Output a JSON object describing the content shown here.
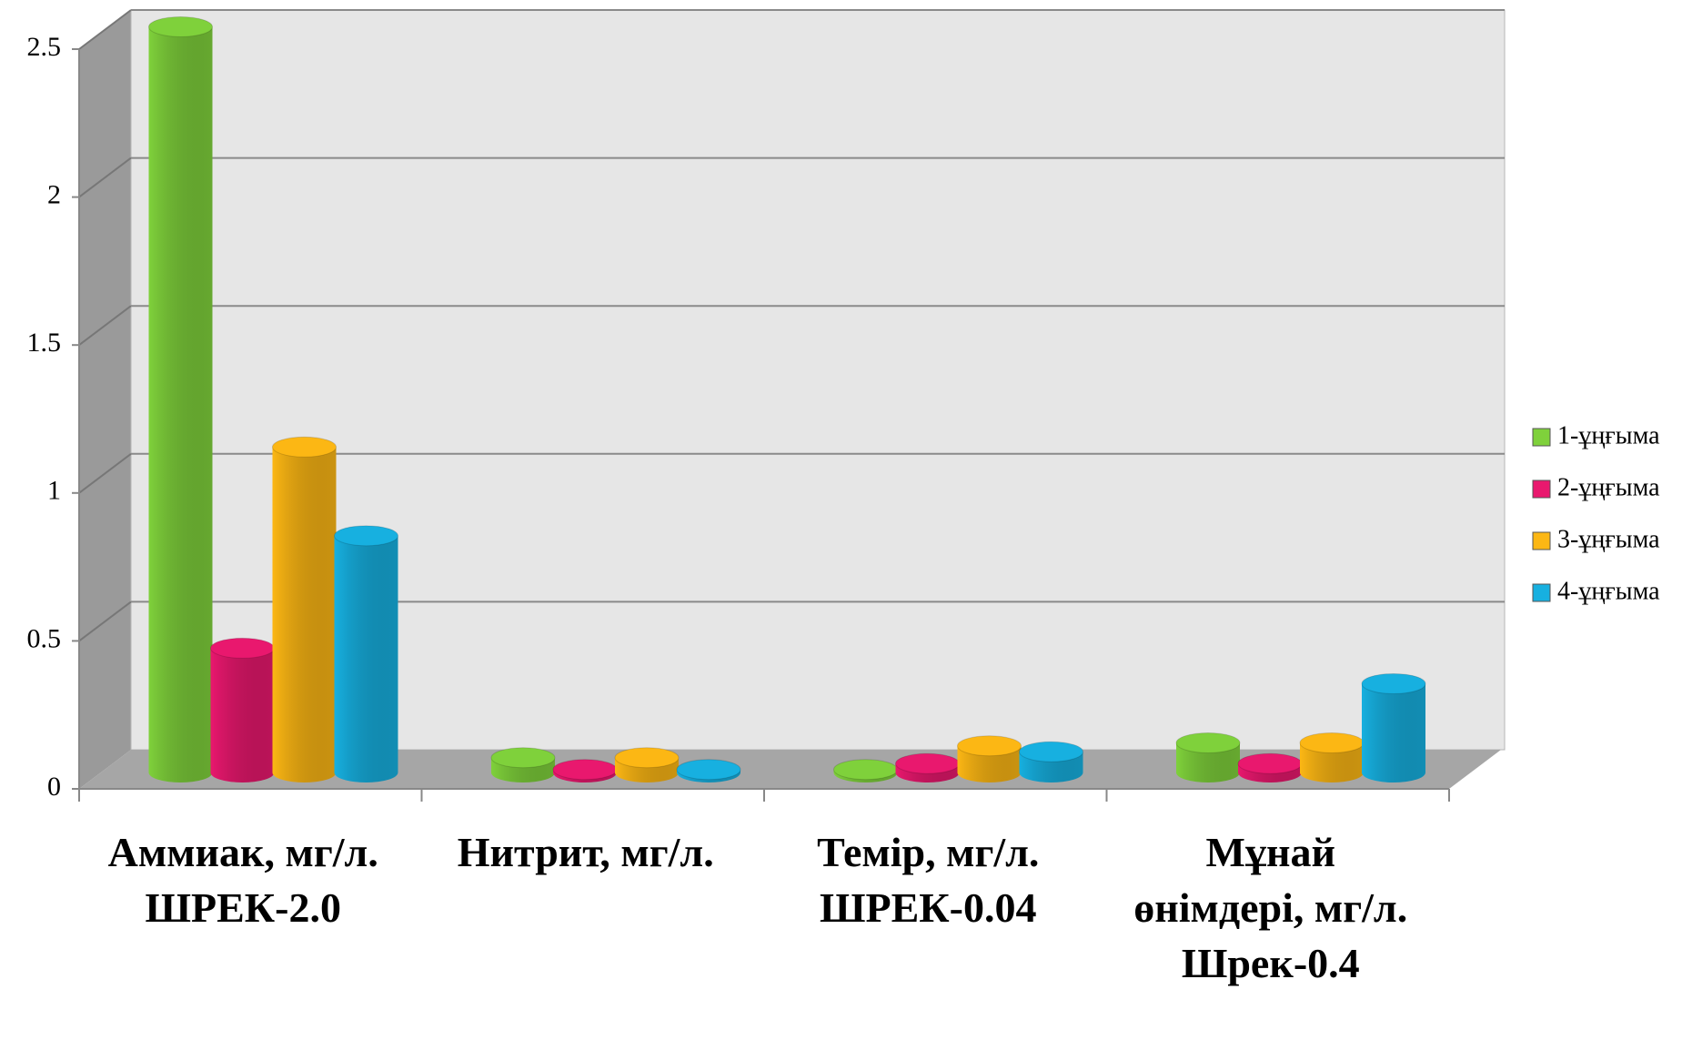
{
  "chart_data": {
    "type": "bar3d",
    "categories": [
      "Аммиак, мг/л. ШРЕК-2.0",
      "Нитрит, мг/л.",
      "Темір, мг/л. ШРЕК-0.04",
      "Мұнай өнімдері, мг/л. Шрек-0.4"
    ],
    "series": [
      {
        "name": "1-ұңғыма",
        "color": "#7fd13b",
        "values": [
          2.52,
          0.05,
          0.01,
          0.1
        ]
      },
      {
        "name": "2-ұңғыма",
        "color": "#e9186e",
        "values": [
          0.42,
          0.01,
          0.03,
          0.03
        ]
      },
      {
        "name": "3-ұңғыма",
        "color": "#fcb714",
        "values": [
          1.1,
          0.05,
          0.09,
          0.1
        ]
      },
      {
        "name": "4-ұңғыма",
        "color": "#17b0e0",
        "values": [
          0.8,
          0.01,
          0.07,
          0.3
        ]
      }
    ],
    "ylim": [
      0,
      2.5
    ],
    "yticks": [
      0,
      0.5,
      1,
      1.5,
      2,
      2.5
    ],
    "grid": true,
    "legend": "right"
  }
}
